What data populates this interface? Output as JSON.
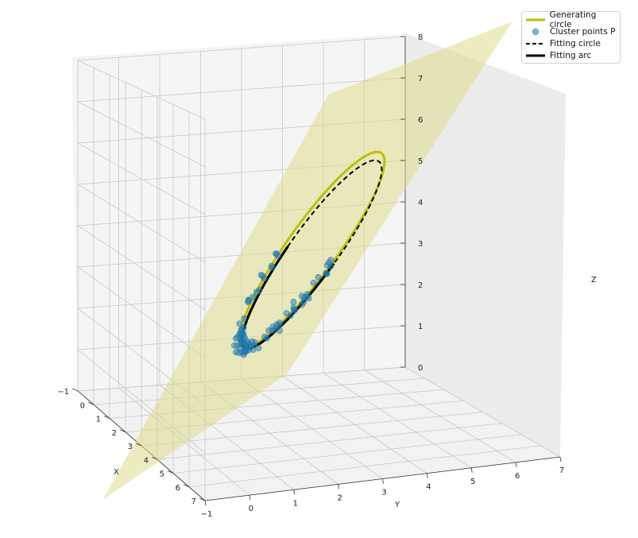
{
  "chart_data": {
    "type": "scatter",
    "title": "",
    "xlabel": "X",
    "ylabel": "Y",
    "zlabel": "Z",
    "x_ticks": [
      "−1",
      "0",
      "1",
      "2",
      "3",
      "4",
      "5",
      "6",
      "7"
    ],
    "y_ticks": [
      "−1",
      "0",
      "1",
      "2",
      "3",
      "4",
      "5",
      "6",
      "7"
    ],
    "z_ticks": [
      "0",
      "1",
      "2",
      "3",
      "4",
      "5",
      "6",
      "7",
      "8"
    ],
    "xlim": [
      -1,
      7
    ],
    "ylim": [
      -1,
      7
    ],
    "zlim": [
      0,
      8
    ],
    "grid": true,
    "legend_placement": "top-right",
    "series": [
      {
        "name": "Generating circle",
        "kind": "line",
        "color": "#bfbf00",
        "style": "solid",
        "center": [
          3,
          3,
          4
        ],
        "radius": 2.6
      },
      {
        "name": "Cluster points P",
        "kind": "scatter",
        "color": "#1f77b4",
        "count": 90,
        "arc_degrees": [
          -160,
          20
        ],
        "noise": 0.18
      },
      {
        "name": "Fitting circle",
        "kind": "line",
        "color": "#000000",
        "style": "dashed",
        "center": [
          3,
          3,
          3.9
        ],
        "radius": 2.5
      },
      {
        "name": "Fitting arc",
        "kind": "line",
        "color": "#000000",
        "style": "solid",
        "arc_degrees": [
          -160,
          20
        ]
      }
    ],
    "plane": {
      "color": "#dcdc8c",
      "opacity": 0.55
    }
  },
  "legend": {
    "items": [
      {
        "label": "Generating circle"
      },
      {
        "label": "Cluster points P"
      },
      {
        "label": "Fitting circle"
      },
      {
        "label": "Fitting arc"
      }
    ]
  }
}
